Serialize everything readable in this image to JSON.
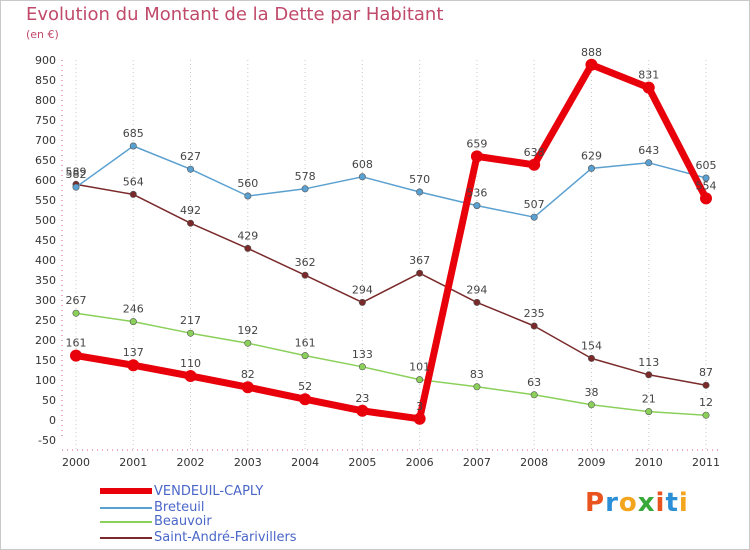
{
  "title": "Evolution du Montant de la Dette par Habitant",
  "subtitle": "(en €)",
  "logo": {
    "text": "Proxiti",
    "colors": [
      "#e8531e",
      "#2a8fd6",
      "#f3a51d",
      "#38a838",
      "#e8531e",
      "#2a8fd6",
      "#f3a51d"
    ]
  },
  "chart_data": {
    "type": "line",
    "title": "Evolution du Montant de la Dette par Habitant",
    "subtitle": "(en €)",
    "xlabel": "",
    "ylabel": "",
    "x": [
      "2000",
      "2001",
      "2002",
      "2003",
      "2004",
      "2005",
      "2006",
      "2007",
      "2008",
      "2009",
      "2010",
      "2011"
    ],
    "ylim": [
      -50,
      900
    ],
    "yticks": [
      -50,
      0,
      50,
      100,
      150,
      200,
      250,
      300,
      350,
      400,
      450,
      500,
      550,
      600,
      650,
      700,
      750,
      800,
      850,
      900
    ],
    "grid": "vertical dotted",
    "legend_position": "bottom-left",
    "series": [
      {
        "name": "VENDEUIL-CAPLY",
        "color": "#e8000b",
        "values": [
          161,
          137,
          110,
          82,
          52,
          23,
          3,
          659,
          638,
          888,
          831,
          554
        ],
        "labels": [
          "161",
          "137",
          "110",
          "82",
          "52",
          "23",
          "3",
          "659",
          "638",
          "888",
          "831",
          "554"
        ]
      },
      {
        "name": "Breteuil",
        "color": "#5aa0d0",
        "values": [
          582,
          685,
          627,
          560,
          578,
          608,
          570,
          536,
          507,
          629,
          643,
          605
        ],
        "labels": [
          "582",
          "685",
          "627",
          "560",
          "578",
          "608",
          "570",
          "536",
          "507",
          "629",
          "643",
          "605"
        ]
      },
      {
        "name": "Beauvoir",
        "color": "#8bd05a",
        "values": [
          267,
          246,
          217,
          192,
          161,
          133,
          101,
          83,
          63,
          38,
          21,
          12
        ],
        "labels": [
          "267",
          "246",
          "217",
          "192",
          "161",
          "133",
          "101",
          "83",
          "63",
          "38",
          "21",
          "12"
        ]
      },
      {
        "name": "Saint-André-Farivillers",
        "color": "#7a2a2a",
        "values": [
          589,
          564,
          492,
          429,
          362,
          294,
          367,
          294,
          235,
          154,
          113,
          87
        ],
        "labels": [
          "589",
          "564",
          "492",
          "429",
          "362",
          "294",
          "367",
          "294",
          "235",
          "154",
          "113",
          "87"
        ]
      }
    ]
  }
}
